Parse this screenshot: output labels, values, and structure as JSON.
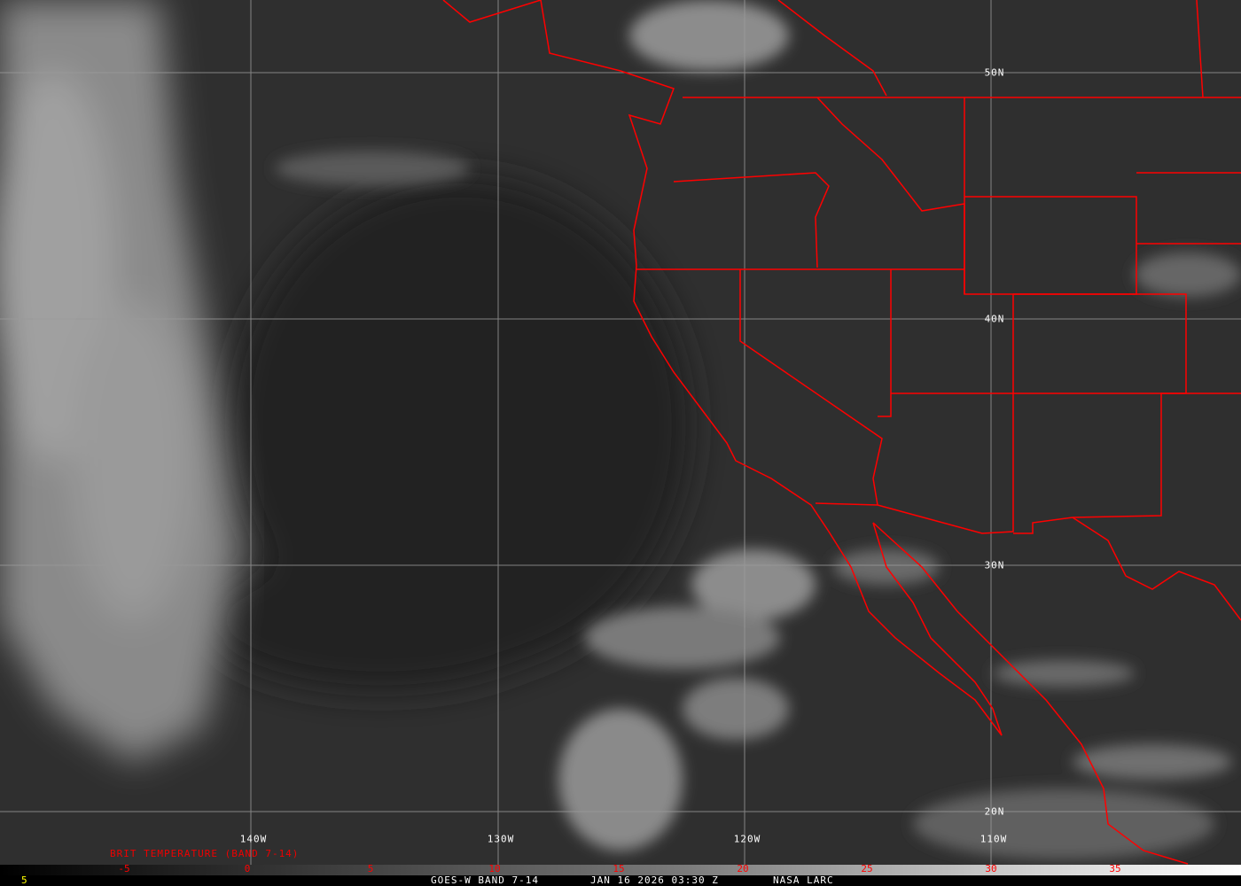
{
  "map": {
    "colors": {
      "border": "#ff0000",
      "grid": "#9a9a9a",
      "label": "#ffffff",
      "colorbar_text": "#ff0000"
    },
    "lat_labels": [
      "50N",
      "40N",
      "30N",
      "20N"
    ],
    "lon_labels": [
      "140W",
      "130W",
      "120W",
      "110W"
    ]
  },
  "colorbar": {
    "title": "BRIT TEMPERATURE (BAND 7-14)",
    "ticks": [
      "-5",
      "0",
      "5",
      "10",
      "15",
      "20",
      "25",
      "30",
      "35"
    ]
  },
  "footer": {
    "frame_number": "5",
    "product": "GOES-W BAND 7-14",
    "datetime": "JAN 16 2026 03:30 Z",
    "credit": "NASA LARC"
  }
}
